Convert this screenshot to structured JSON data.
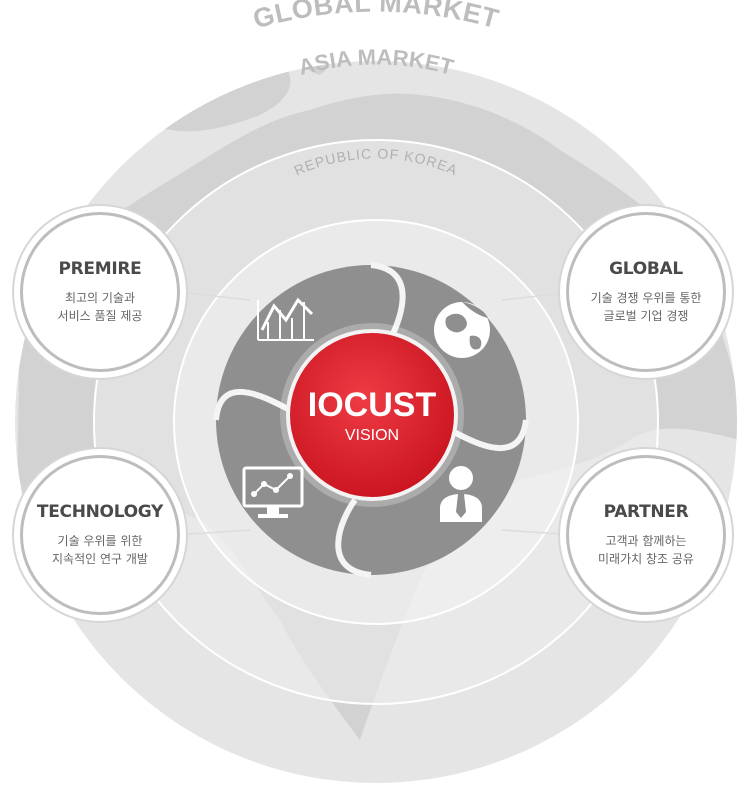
{
  "rings": {
    "global_label": "GLOBAL MARKET",
    "asia_label": "ASIA MARKET",
    "korea_label": "REPUBLIC OF KOREA"
  },
  "center": {
    "title": "IOCUST",
    "subtitle": "VISION"
  },
  "nodes": {
    "premire": {
      "title": "PREMIRE",
      "line1": "최고의 기술과",
      "line2": "서비스 품질 제공"
    },
    "global": {
      "title": "GLOBAL",
      "line1": "기술 경쟁 우위를 통한",
      "line2": "글로벌 기업 경쟁"
    },
    "technology": {
      "title": "TECHNOLOGY",
      "line1": "기술 우위를 위한",
      "line2": "지속적인 연구 개발"
    },
    "partner": {
      "title": "PARTNER",
      "line1": "고객과 함께하는",
      "line2": "미래가치 창조 공유"
    }
  },
  "colors": {
    "accent_red": "#e0222e",
    "dark_gray": "#8c8c8c",
    "ring_gray": "#e2e2e2",
    "map_gray": "#d0d0d0",
    "label_gray": "#b8b8b8"
  },
  "icons": [
    "line-chart-icon",
    "globe-icon",
    "monitor-chart-icon",
    "businessman-icon"
  ]
}
